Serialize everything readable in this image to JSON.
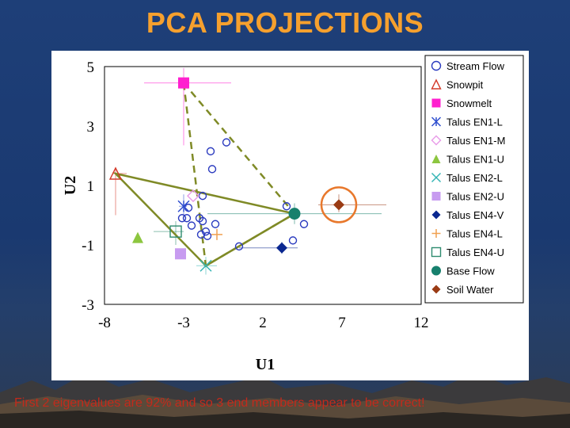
{
  "slide": {
    "title": "PCA PROJECTIONS",
    "caption": "First 2 eigenvalues are 92% and so 3 end members appear to be correct!"
  },
  "chart_data": {
    "type": "scatter",
    "xlabel": "U1",
    "ylabel": "U2",
    "xlim": [
      -8,
      12
    ],
    "ylim": [
      -3,
      5
    ],
    "xticks": [
      -8,
      -3,
      2,
      7,
      12
    ],
    "yticks": [
      5,
      3,
      1,
      -1,
      -3
    ],
    "grid": false,
    "legend_position": "right",
    "series": [
      {
        "name": "Stream Flow",
        "marker": "circle-open",
        "color": "#2b3bbf",
        "points": [
          [
            -1.3,
            2.15
          ],
          [
            -0.3,
            2.45
          ],
          [
            -1.2,
            1.55
          ],
          [
            -1.8,
            0.65
          ],
          [
            -3.1,
            -0.1
          ],
          [
            -2.8,
            -0.1
          ],
          [
            -2.7,
            0.25
          ],
          [
            -2.5,
            -0.35
          ],
          [
            -2.0,
            -0.1
          ],
          [
            -1.8,
            -0.2
          ],
          [
            -1.6,
            -0.55
          ],
          [
            -1.5,
            -0.7
          ],
          [
            -1.9,
            -0.65
          ],
          [
            -1.0,
            -0.3
          ],
          [
            0.5,
            -1.05
          ],
          [
            3.5,
            0.3
          ],
          [
            3.9,
            -0.85
          ],
          [
            4.6,
            -0.3
          ]
        ]
      },
      {
        "name": "Snowpit",
        "marker": "triangle-open",
        "color": "#d43a2a",
        "points": [
          [
            -7.3,
            1.4
          ]
        ],
        "err_x": [
          [
            -7.5,
            -6.6
          ]
        ],
        "err_y": [
          [
            0,
            1.6
          ]
        ]
      },
      {
        "name": "Snowmelt",
        "marker": "square",
        "color": "#ff1fcf",
        "points": [
          [
            -3.0,
            4.45
          ]
        ],
        "err_x": [
          [
            -5.5,
            0.0
          ]
        ],
        "err_y": [
          [
            2.35,
            4.95
          ]
        ]
      },
      {
        "name": "Talus EN1-L",
        "marker": "asterisk",
        "color": "#2f4fcf",
        "points": [
          [
            -3.0,
            0.3
          ]
        ],
        "err_x": [
          [
            -3.3,
            -2.8
          ]
        ],
        "err_y": [
          [
            -0.1,
            0.7
          ]
        ]
      },
      {
        "name": "Talus EN1-M",
        "marker": "diamond-open",
        "color": "#e89ae8",
        "points": [
          [
            -2.4,
            0.65
          ]
        ]
      },
      {
        "name": "Talus EN1-U",
        "marker": "triangle",
        "color": "#8cc63f",
        "points": [
          [
            -5.9,
            -0.75
          ]
        ]
      },
      {
        "name": "Talus EN2-L",
        "marker": "x",
        "color": "#35b5b5",
        "points": [
          [
            -1.6,
            -1.7
          ]
        ],
        "err_x": [
          [
            -2.2,
            -0.9
          ]
        ],
        "err_y": [
          [
            -2.0,
            -1.4
          ]
        ]
      },
      {
        "name": "Talus EN2-U",
        "marker": "square",
        "color": "#c79bf0",
        "points": [
          [
            -3.2,
            -1.3
          ]
        ]
      },
      {
        "name": "Talus EN4-V",
        "marker": "diamond",
        "color": "#0a2790",
        "points": [
          [
            3.2,
            -1.1
          ]
        ],
        "err_x": [
          [
            0.5,
            4.2
          ]
        ],
        "err_y": [
          [
            -1.3,
            -0.9
          ]
        ]
      },
      {
        "name": "Talus EN4-L",
        "marker": "plus",
        "color": "#f0a050",
        "points": [
          [
            -0.9,
            -0.65
          ]
        ]
      },
      {
        "name": "Talus EN4-U",
        "marker": "square-open",
        "color": "#2e8b6f",
        "points": [
          [
            -3.5,
            -0.55
          ]
        ],
        "err_x": [
          [
            -4.9,
            -3.0
          ]
        ],
        "err_y": [
          [
            -1.0,
            -0.2
          ]
        ]
      },
      {
        "name": "Base Flow",
        "marker": "circle",
        "color": "#17806d",
        "points": [
          [
            4.0,
            0.05
          ]
        ],
        "err_x": [
          [
            -1.5,
            9.5
          ]
        ],
        "err_y": [
          [
            -0.3,
            0.4
          ]
        ]
      },
      {
        "name": "Soil Water",
        "marker": "diamond",
        "color": "#9a3b14",
        "points": [
          [
            6.8,
            0.35
          ]
        ],
        "err_x": [
          [
            5.5,
            9.8
          ]
        ],
        "err_y": [
          [
            0.1,
            0.7
          ]
        ]
      }
    ],
    "mixing_triangles": [
      {
        "style": "dashed",
        "color": "#7f8a26",
        "vertices": [
          [
            -3.0,
            4.45
          ],
          [
            -1.6,
            -1.7
          ],
          [
            4.0,
            0.05
          ]
        ]
      },
      {
        "style": "solid",
        "color": "#7f8a26",
        "vertices": [
          [
            -7.3,
            1.4
          ],
          [
            -1.6,
            -1.7
          ],
          [
            4.0,
            0.05
          ]
        ]
      }
    ],
    "highlight": {
      "shape": "circle",
      "color": "#e8782c",
      "center": [
        6.8,
        0.35
      ],
      "label_target": "Soil Water"
    }
  }
}
